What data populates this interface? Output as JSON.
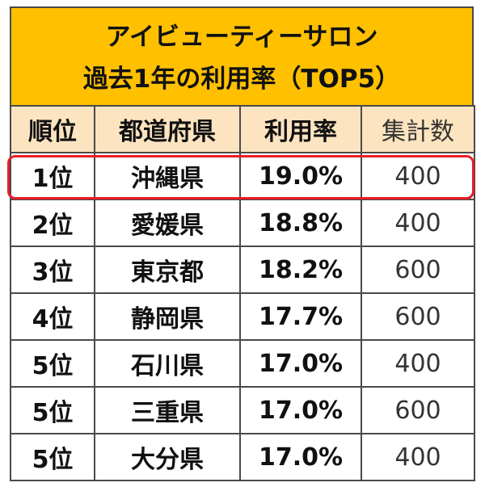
{
  "title": {
    "line1": "アイビューティーサロン",
    "line2": "過去1年の利用率（TOP5）"
  },
  "headers": [
    "順位",
    "都道府県",
    "利用率",
    "集計数"
  ],
  "rows": [
    {
      "rank": "1位",
      "prefecture": "沖縄県",
      "rate": "19.0%",
      "count": "400"
    },
    {
      "rank": "2位",
      "prefecture": "愛媛県",
      "rate": "18.8%",
      "count": "400"
    },
    {
      "rank": "3位",
      "prefecture": "東京都",
      "rate": "18.2%",
      "count": "600"
    },
    {
      "rank": "4位",
      "prefecture": "静岡県",
      "rate": "17.7%",
      "count": "600"
    },
    {
      "rank": "5位",
      "prefecture": "石川県",
      "rate": "17.0%",
      "count": "400"
    },
    {
      "rank": "5位",
      "prefecture": "三重県",
      "rate": "17.0%",
      "count": "600"
    },
    {
      "rank": "5位",
      "prefecture": "大分県",
      "rate": "17.0%",
      "count": "400"
    }
  ],
  "highlighted_row": 0,
  "colors": {
    "title_background": "#ffc000",
    "header_background": "#fce4c0",
    "highlight_border": "#e81e26"
  },
  "chart_data": {
    "type": "table",
    "title": "アイビューティーサロン 過去1年の利用率（TOP5）",
    "columns": [
      "順位",
      "都道府県",
      "利用率",
      "集計数"
    ],
    "categories": [
      "沖縄県",
      "愛媛県",
      "東京都",
      "静岡県",
      "石川県",
      "三重県",
      "大分県"
    ],
    "series": [
      {
        "name": "利用率",
        "values": [
          19.0,
          18.8,
          18.2,
          17.7,
          17.0,
          17.0,
          17.0
        ]
      },
      {
        "name": "集計数",
        "values": [
          400,
          400,
          600,
          600,
          400,
          600,
          400
        ]
      }
    ]
  }
}
